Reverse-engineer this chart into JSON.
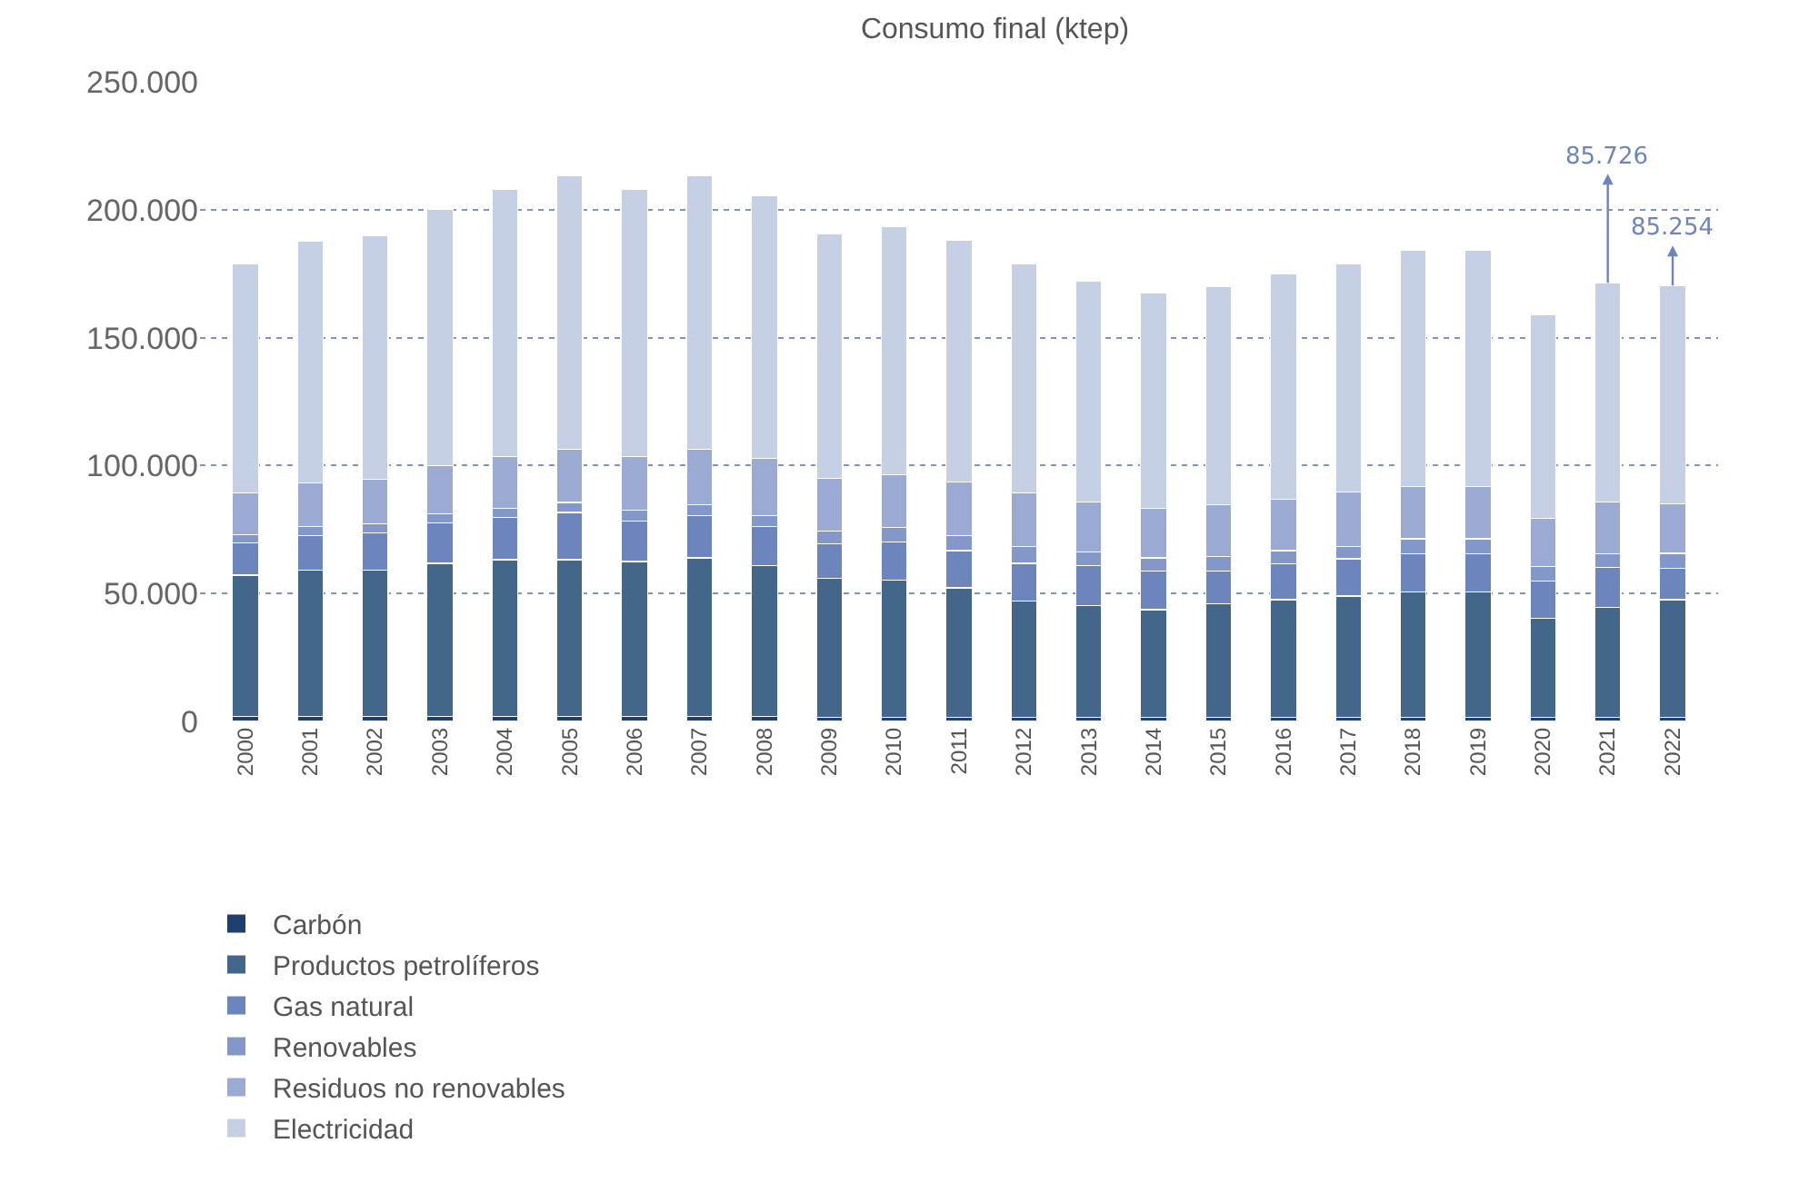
{
  "chart_data": {
    "type": "bar",
    "title": "Consumo final (ktep)",
    "stacked": true,
    "categories": [
      "2000",
      "2001",
      "2002",
      "2003",
      "2004",
      "2005",
      "2006",
      "2007",
      "2008",
      "2009",
      "2010",
      "2011",
      "2012",
      "2013",
      "2014",
      "2015",
      "2016",
      "2017",
      "2018",
      "2019",
      "2020",
      "2021",
      "2022"
    ],
    "series": [
      {
        "name": "Carbón",
        "color": "#1f3f6e",
        "values": [
          2000,
          2000,
          2000,
          2000,
          2000,
          2000,
          2000,
          2000,
          2000,
          1500,
          1500,
          1500,
          1500,
          1500,
          1500,
          1500,
          1500,
          1500,
          1500,
          1500,
          1500,
          1500,
          1500
        ]
      },
      {
        "name": "Productos petrolíferos",
        "color": "#44668a",
        "values": [
          55200,
          57200,
          57200,
          59800,
          61200,
          61200,
          60500,
          61900,
          59000,
          54500,
          53600,
          50700,
          45600,
          43700,
          42200,
          44400,
          46100,
          47500,
          49000,
          49000,
          38900,
          43200,
          46100
        ]
      },
      {
        "name": "Gas natural",
        "color": "#6c85bd",
        "values": [
          12500,
          13400,
          14400,
          15800,
          16600,
          18500,
          15900,
          16600,
          15200,
          13300,
          14900,
          14600,
          14700,
          15800,
          15200,
          13000,
          13900,
          14600,
          14900,
          14900,
          14400,
          15600,
          12300
        ]
      },
      {
        "name": "Renovables",
        "color": "#8497c9",
        "values": [
          3200,
          3600,
          3600,
          3600,
          3600,
          3900,
          4300,
          4300,
          4300,
          5000,
          5800,
          5800,
          6500,
          5100,
          5000,
          5500,
          5300,
          4800,
          6000,
          6000,
          5800,
          5100,
          5800
        ]
      },
      {
        "name": "Residuos no renovables",
        "color": "#9aaad3",
        "values": [
          16300,
          17100,
          17500,
          18800,
          20000,
          20700,
          20700,
          21500,
          22200,
          20700,
          20600,
          20900,
          20900,
          19800,
          19500,
          20200,
          20000,
          21200,
          20400,
          20400,
          18800,
          20300,
          19400
        ]
      },
      {
        "name": "Electricidad",
        "color": "#c5d0e4",
        "values": [
          89700,
          94300,
          95300,
          100300,
          104400,
          107000,
          104400,
          107000,
          102900,
          95700,
          96900,
          94500,
          89800,
          86100,
          84100,
          85400,
          88200,
          89400,
          92200,
          92200,
          79600,
          85726,
          85254
        ]
      }
    ],
    "annotations": [
      {
        "text": "85.726",
        "x": "2021",
        "y": 171426
      },
      {
        "text": "85.254",
        "x": "2022",
        "y": 170354
      }
    ],
    "ylim": [
      0,
      250000
    ],
    "yticks": [
      {
        "value": 0,
        "label": "0"
      },
      {
        "value": 50000,
        "label": "50.000"
      },
      {
        "value": 100000,
        "label": "100.000"
      },
      {
        "value": 150000,
        "label": "150.000"
      },
      {
        "value": 200000,
        "label": "200.000"
      },
      {
        "value": 250000,
        "label": "250.000"
      }
    ],
    "grid": "y",
    "legend": "bottom left"
  }
}
